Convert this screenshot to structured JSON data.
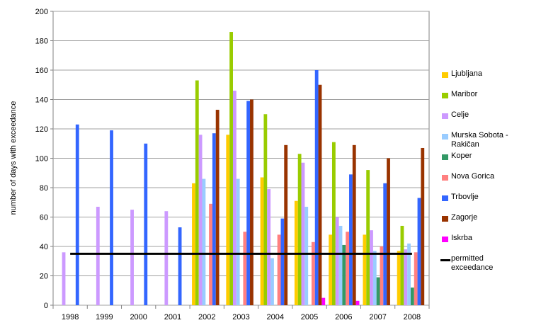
{
  "chart_data": {
    "type": "bar",
    "y_label": "number of days with exceedance",
    "categories": [
      "1998",
      "1999",
      "2000",
      "2001",
      "2002",
      "2003",
      "2004",
      "2005",
      "2006",
      "2007",
      "2008"
    ],
    "ylim": [
      0,
      200
    ],
    "yticks": [
      0,
      20,
      40,
      60,
      80,
      100,
      120,
      140,
      160,
      180,
      200
    ],
    "grid": true,
    "series": [
      {
        "name": "Ljubljana",
        "color": "#ffcc00",
        "values": [
          null,
          null,
          null,
          null,
          83,
          116,
          87,
          71,
          48,
          48,
          37
        ]
      },
      {
        "name": "Maribor",
        "color": "#99cc00",
        "values": [
          null,
          null,
          null,
          null,
          153,
          186,
          130,
          103,
          111,
          92,
          54
        ]
      },
      {
        "name": "Celje",
        "color": "#cc99ff",
        "values": [
          36,
          67,
          65,
          64,
          116,
          146,
          79,
          97,
          60,
          51,
          38
        ]
      },
      {
        "name": "Murska Sobota - Rakičan",
        "color": "#99ccff",
        "values": [
          null,
          null,
          null,
          null,
          86,
          86,
          32,
          67,
          54,
          37,
          42
        ]
      },
      {
        "name": "Koper",
        "color": "#339966",
        "values": [
          null,
          null,
          null,
          null,
          null,
          null,
          null,
          null,
          41,
          19,
          12
        ]
      },
      {
        "name": "Nova Gorica",
        "color": "#ff8080",
        "values": [
          null,
          null,
          null,
          null,
          69,
          50,
          48,
          43,
          50,
          40,
          36
        ]
      },
      {
        "name": "Trbovlje",
        "color": "#3366ff",
        "values": [
          123,
          119,
          110,
          53,
          117,
          139,
          59,
          160,
          89,
          83,
          73
        ]
      },
      {
        "name": "Zagorje",
        "color": "#993300",
        "values": [
          null,
          null,
          null,
          null,
          133,
          140,
          109,
          150,
          109,
          100,
          107
        ]
      },
      {
        "name": "Iskrba",
        "color": "#ff00ff",
        "values": [
          null,
          null,
          null,
          null,
          null,
          null,
          null,
          5,
          3,
          null,
          null
        ]
      },
      {
        "name": "permitted exceedance",
        "color": "#000000",
        "type": "line",
        "values": [
          35,
          35,
          35,
          35,
          35,
          35,
          35,
          35,
          35,
          35,
          35
        ]
      }
    ]
  }
}
